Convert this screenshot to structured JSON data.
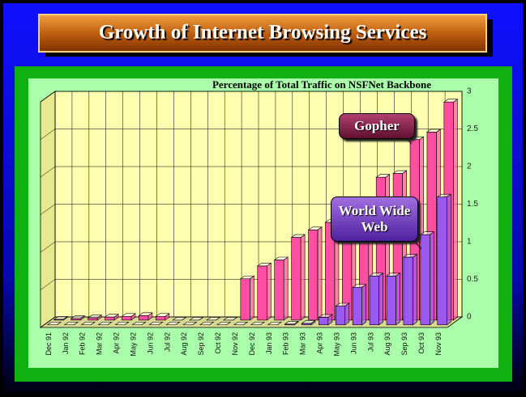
{
  "page_title": "Growth of Internet Browsing Services",
  "chart_data": {
    "type": "bar3d",
    "title": "Percentage of Total Traffic on NSFNet Backbone",
    "categories": [
      "Dec 91",
      "Jan 92",
      "Feb 92",
      "Mar 92",
      "Apr 92",
      "May 92",
      "Jun 92",
      "Jul 92",
      "Aug 92",
      "Sep 92",
      "Oct 92",
      "Nov 92",
      "Dec 92",
      "Jan 93",
      "Feb 93",
      "Mar 93",
      "Apr 93",
      "May 93",
      "Jun 93",
      "Jul 93",
      "Aug 93",
      "Sep 93",
      "Oct 93",
      "Nov 93"
    ],
    "series": [
      {
        "name": "Gopher",
        "color": "#ff4fa3",
        "values": [
          0.01,
          0.02,
          0.03,
          0.04,
          0.05,
          0.06,
          0.05,
          0,
          0,
          0,
          0,
          0.55,
          0.72,
          0.8,
          1.1,
          1.2,
          1.3,
          1.5,
          1.6,
          1.9,
          1.95,
          2.4,
          2.5,
          2.9
        ]
      },
      {
        "name": "World Wide Web",
        "color": "#9b59f0",
        "values": [
          0,
          0,
          0,
          0,
          0,
          0,
          0,
          0,
          0,
          0,
          0,
          0,
          0,
          0,
          0.01,
          0.02,
          0.1,
          0.25,
          0.5,
          0.65,
          0.65,
          0.9,
          1.2,
          1.7
        ]
      }
    ],
    "ylim": [
      0,
      3
    ],
    "yticks": [
      0,
      0.5,
      1,
      1.5,
      2,
      2.5,
      3
    ],
    "grid": true
  }
}
